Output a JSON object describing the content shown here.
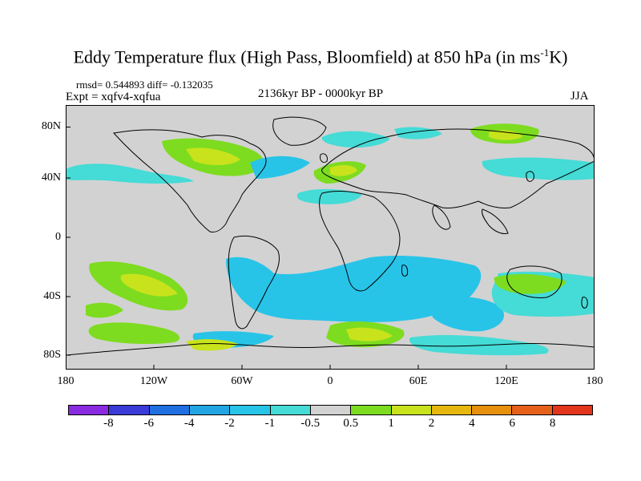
{
  "title": {
    "main": "Eddy Temperature flux (High Pass, Bloomfield) at 850 hPa (in ms",
    "sup": "-1",
    "end": "K)"
  },
  "stats": "rmsd= 0.544893 diff= -0.132035",
  "experiment": "Expt = xqfv4-xqfua",
  "period": "2136kyr BP - 0000kyr BP",
  "season": "JJA",
  "y_ticks": [
    "80N",
    "40N",
    "0",
    "40S",
    "80S"
  ],
  "x_ticks": [
    "180",
    "120W",
    "60W",
    "0",
    "60E",
    "120E",
    "180"
  ],
  "colorbar": {
    "colors": [
      "#8a2be2",
      "#3a3ad8",
      "#1f6fe0",
      "#22a6e3",
      "#27c4e8",
      "#45dbd6",
      "#d2d2d2",
      "#7ddc1f",
      "#c8e31c",
      "#e6b80f",
      "#e6900d",
      "#e6601a",
      "#e3341c"
    ],
    "labels": [
      "-8",
      "-6",
      "-4",
      "-2",
      "-1",
      "-0.5",
      "0.5",
      "1",
      "2",
      "4",
      "6",
      "8"
    ]
  },
  "map_colors": {
    "ocean": "#d2d2d2",
    "neg_weak": "#45dbd6",
    "neg": "#27c4e8",
    "neg_strong": "#22a6e3",
    "pos_weak": "#7ddc1f",
    "pos": "#c8e31c",
    "pos_strong": "#e6b80f"
  }
}
